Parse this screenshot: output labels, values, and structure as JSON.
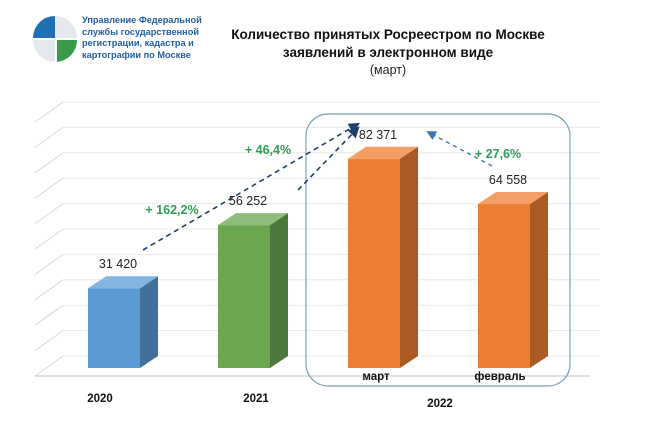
{
  "org": {
    "lines": [
      "Управление Федеральной",
      "службы государственной",
      "регистрации, кадастра и",
      "картографии по Москве"
    ]
  },
  "header": {
    "title_line1": "Количество принятых Росреестром по Москве",
    "title_line2": "заявлений в электронном виде",
    "subtitle": "(март)"
  },
  "colors": {
    "org_text": "#1f5f9e",
    "bar_2020": "#5b9bd5",
    "bar_2021": "#6aa84f",
    "bar_2022": "#ed7d31",
    "growth_text": "#2e9b57",
    "arrow_2020": "#1f3f6e",
    "arrow_2022": "#3b78b0"
  },
  "chart_data": {
    "type": "bar",
    "categories": [
      "2020",
      "2021",
      "март",
      "февраль"
    ],
    "group_labels": [
      "2020",
      "2021",
      "2022",
      "2022"
    ],
    "values": [
      31420,
      56252,
      82371,
      64558
    ],
    "value_labels": [
      "31 420",
      "56 252",
      "82 371",
      "64 558"
    ],
    "growth_annotations": [
      {
        "from": "2020",
        "to": "март",
        "text": "+ 162,2%"
      },
      {
        "from": "2021",
        "to": "март",
        "text": "+ 46,4%"
      },
      {
        "from": "февраль",
        "to": "март",
        "text": "+ 27,6%"
      }
    ],
    "x_group_labels": [
      "2020",
      "2021",
      "2022"
    ],
    "title": "Количество принятых Росреестром по Москве заявлений в электронном виде",
    "subtitle": "(март)",
    "ylim": [
      0,
      100000
    ],
    "grid": true,
    "legend": "none"
  }
}
